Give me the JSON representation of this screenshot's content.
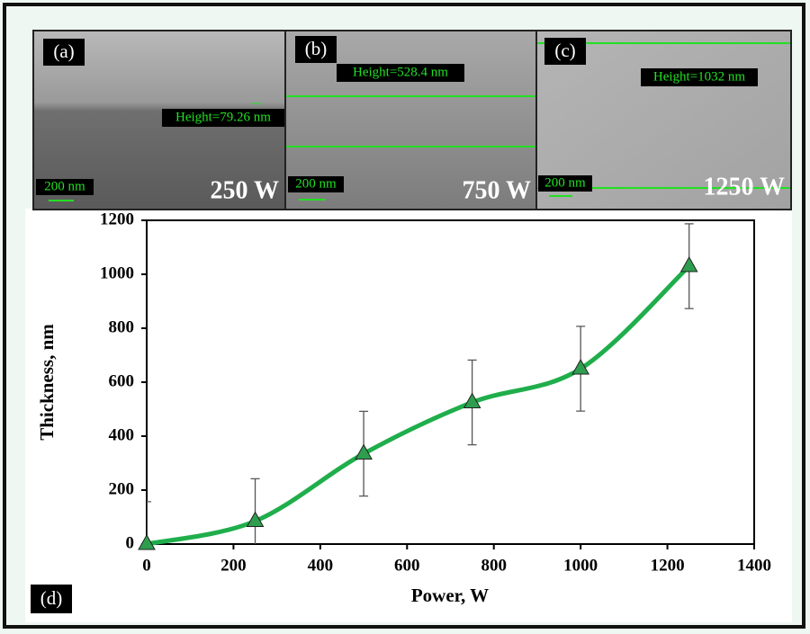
{
  "panels": [
    {
      "label": "(a)",
      "height": "Height=79.26 nm",
      "scale": "200 nm",
      "power": "250 W"
    },
    {
      "label": "(b)",
      "height": "Height=528.4 nm",
      "scale": "200 nm",
      "power": "750 W"
    },
    {
      "label": "(c)",
      "height": "Height=1032 nm",
      "scale": "200 nm",
      "power": "1250 W"
    }
  ],
  "chart_data": {
    "type": "line",
    "panel_label": "(d)",
    "x_label": "Power, W",
    "y_label": "Thickness, nm",
    "x": [
      0,
      250,
      500,
      750,
      1000,
      1250
    ],
    "series": [
      {
        "color": "#1fae4b",
        "marker_color": "#2e9e4e",
        "values": [
          0,
          85,
          335,
          525,
          650,
          1030
        ],
        "errors": [
          157,
          157,
          157,
          157,
          157,
          157
        ]
      }
    ],
    "xlim": [
      0,
      1400
    ],
    "xticks": [
      0,
      200,
      400,
      600,
      800,
      1000,
      1200,
      1400
    ],
    "ylim": [
      0,
      1200
    ],
    "yticks": [
      0,
      200,
      400,
      600,
      800,
      1000,
      1200
    ]
  }
}
